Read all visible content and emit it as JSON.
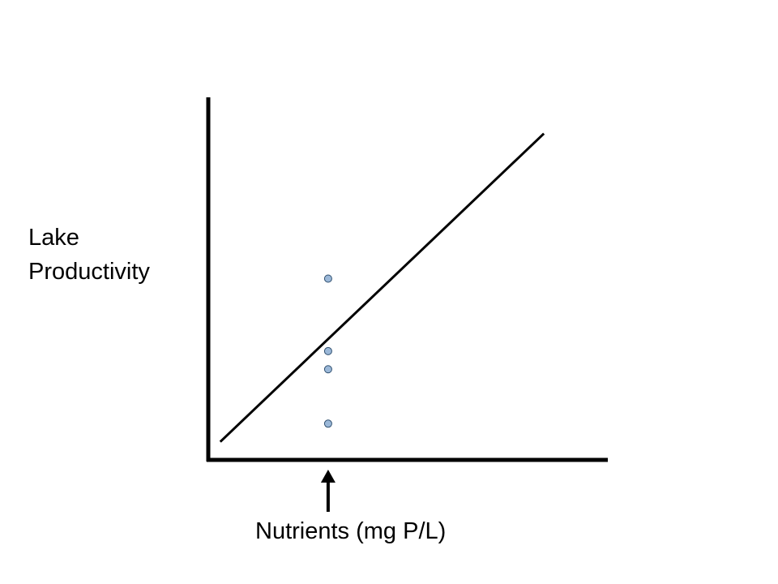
{
  "chart_data": {
    "type": "scatter",
    "title": "",
    "xlabel": "Nutrients (mg P/L)",
    "ylabel_lines": [
      "Lake",
      "Productivity"
    ],
    "trend_line": {
      "x": [
        0.03,
        0.84
      ],
      "y": [
        0.05,
        0.9
      ]
    },
    "points": [
      {
        "x": 0.3,
        "y": 0.5
      },
      {
        "x": 0.3,
        "y": 0.3
      },
      {
        "x": 0.3,
        "y": 0.25
      },
      {
        "x": 0.3,
        "y": 0.1
      }
    ],
    "marker_arrow": {
      "x": 0.3
    },
    "xlim": [
      0,
      1
    ],
    "ylim": [
      0,
      1
    ],
    "grid": false,
    "tick_labels": false
  },
  "colors": {
    "axis": "#000000",
    "line": "#000000",
    "point_fill": "#9bb8d8",
    "point_stroke": "#2f4f6f"
  }
}
